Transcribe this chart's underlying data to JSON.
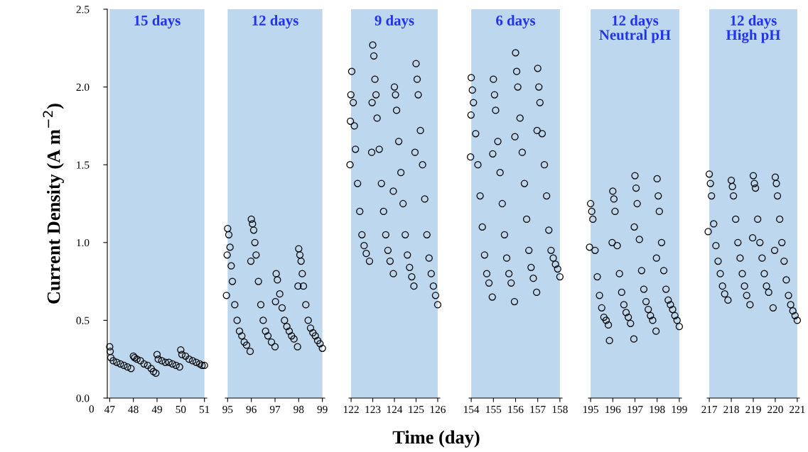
{
  "chart_data": [
    {
      "type": "scatter",
      "ylabel": "Current Density (A m$^{−2}$)",
      "annotations": [
        "0"
      ],
      "xlim": [
        46.9,
        51.1
      ],
      "xticks": [
        47,
        48,
        49,
        50,
        51
      ],
      "ylim": [
        0,
        2.5
      ],
      "yticks": [
        {
          "value": 0,
          "label": "0.0"
        },
        {
          "value": 0.5,
          "label": "0.5"
        },
        {
          "value": 1,
          "label": "1.0"
        },
        {
          "value": 1.5,
          "label": "1.5"
        },
        {
          "value": 2,
          "label": "2.0"
        },
        {
          "value": 2.5,
          "label": "2.5"
        }
      ],
      "marker": "circle",
      "bands": [
        {
          "axis": "x",
          "from": 47,
          "to": 51,
          "label": "15 days",
          "color": "#bdd7ee"
        }
      ],
      "series": [
        {
          "color": "#000000",
          "x": [
            47.0,
            47.02,
            47.05,
            47.15,
            47.3,
            47.45,
            47.6,
            47.75,
            47.9,
            48.0,
            48.05,
            48.15,
            48.3,
            48.45,
            48.6,
            48.75,
            48.85,
            48.95,
            49.0,
            49.05,
            49.2,
            49.35,
            49.5,
            49.65,
            49.8,
            49.95,
            50.0,
            50.05,
            50.2,
            50.35,
            50.5,
            50.65,
            50.8,
            50.9,
            51.0
          ],
          "values": [
            0.33,
            0.3,
            0.26,
            0.24,
            0.23,
            0.22,
            0.21,
            0.2,
            0.19,
            0.27,
            0.26,
            0.25,
            0.24,
            0.22,
            0.21,
            0.19,
            0.17,
            0.16,
            0.28,
            0.25,
            0.24,
            0.23,
            0.23,
            0.22,
            0.21,
            0.2,
            0.31,
            0.28,
            0.27,
            0.25,
            0.24,
            0.23,
            0.22,
            0.21,
            0.21
          ]
        }
      ]
    },
    {
      "type": "scatter",
      "xlim": [
        94.9,
        99.1
      ],
      "xticks": [
        95,
        96,
        97,
        98,
        99
      ],
      "ylim": [
        0,
        2.5
      ],
      "tick_labels": "x",
      "marker": "circle",
      "bands": [
        {
          "axis": "x",
          "from": 95,
          "to": 99,
          "label": "12 days",
          "color": "#bdd7ee"
        }
      ],
      "series": [
        {
          "color": "#000000",
          "x": [
            94.95,
            94.98,
            95.0,
            95.05,
            95.1,
            95.15,
            95.2,
            95.3,
            95.4,
            95.5,
            95.6,
            95.7,
            95.8,
            95.95,
            95.98,
            96.0,
            96.05,
            96.1,
            96.15,
            96.2,
            96.3,
            96.4,
            96.5,
            96.6,
            96.7,
            96.85,
            97.0,
            97.02,
            97.05,
            97.1,
            97.2,
            97.3,
            97.4,
            97.5,
            97.6,
            97.7,
            97.8,
            97.95,
            97.97,
            98.0,
            98.05,
            98.1,
            98.15,
            98.2,
            98.3,
            98.4,
            98.5,
            98.6,
            98.7,
            98.8,
            98.9,
            99.0
          ],
          "values": [
            0.66,
            0.92,
            1.09,
            1.05,
            0.97,
            0.85,
            0.75,
            0.6,
            0.5,
            0.43,
            0.4,
            0.36,
            0.34,
            0.3,
            0.88,
            1.15,
            1.12,
            1.08,
            1.0,
            0.92,
            0.75,
            0.6,
            0.5,
            0.43,
            0.4,
            0.36,
            0.33,
            0.62,
            0.8,
            0.76,
            0.67,
            0.58,
            0.5,
            0.46,
            0.43,
            0.4,
            0.38,
            0.33,
            0.72,
            0.96,
            0.92,
            0.88,
            0.8,
            0.72,
            0.6,
            0.5,
            0.45,
            0.42,
            0.4,
            0.37,
            0.35,
            0.32
          ]
        }
      ]
    },
    {
      "type": "scatter",
      "xlim": [
        121.9,
        126.1
      ],
      "xticks": [
        122,
        123,
        124,
        125,
        126
      ],
      "ylim": [
        0,
        2.5
      ],
      "tick_labels": "x",
      "marker": "circle",
      "xlabel": "Time (day)",
      "bands": [
        {
          "axis": "x",
          "from": 122,
          "to": 126,
          "label": "9 days",
          "color": "#bdd7ee"
        }
      ],
      "series": [
        {
          "color": "#000000",
          "x": [
            121.95,
            121.97,
            121.99,
            122.03,
            122.1,
            122.15,
            122.2,
            122.3,
            122.4,
            122.5,
            122.6,
            122.7,
            122.85,
            122.95,
            122.97,
            123.0,
            123.05,
            123.1,
            123.15,
            123.2,
            123.3,
            123.4,
            123.5,
            123.6,
            123.7,
            123.8,
            123.95,
            123.95,
            124.0,
            124.05,
            124.1,
            124.2,
            124.3,
            124.4,
            124.5,
            124.6,
            124.7,
            124.8,
            124.9,
            124.95,
            125.0,
            125.05,
            125.1,
            125.2,
            125.3,
            125.4,
            125.5,
            125.6,
            125.7,
            125.8,
            125.9,
            126.0
          ],
          "values": [
            1.5,
            1.78,
            1.95,
            2.1,
            1.9,
            1.75,
            1.6,
            1.38,
            1.2,
            1.05,
            0.98,
            0.93,
            0.88,
            1.58,
            1.9,
            2.27,
            2.2,
            2.05,
            1.95,
            1.8,
            1.6,
            1.38,
            1.2,
            1.05,
            0.95,
            0.88,
            0.8,
            1.33,
            2.0,
            1.95,
            1.85,
            1.65,
            1.45,
            1.25,
            1.05,
            0.92,
            0.84,
            0.78,
            0.72,
            1.58,
            2.15,
            2.05,
            1.95,
            1.72,
            1.5,
            1.28,
            1.05,
            0.9,
            0.8,
            0.72,
            0.66,
            0.6
          ]
        }
      ]
    },
    {
      "type": "scatter",
      "xlim": [
        153.9,
        158.1
      ],
      "xticks": [
        154,
        155,
        156,
        157,
        158
      ],
      "ylim": [
        0,
        2.5
      ],
      "tick_labels": "x",
      "marker": "circle",
      "bands": [
        {
          "axis": "x",
          "from": 154,
          "to": 158,
          "label": "6 days",
          "color": "#bdd7ee"
        }
      ],
      "series": [
        {
          "color": "#000000",
          "x": [
            153.97,
            153.99,
            154.0,
            154.05,
            154.1,
            154.2,
            154.3,
            154.4,
            154.5,
            154.6,
            154.7,
            154.8,
            154.95,
            154.97,
            155.0,
            155.05,
            155.1,
            155.2,
            155.3,
            155.4,
            155.5,
            155.6,
            155.7,
            155.8,
            155.95,
            155.97,
            156.0,
            156.05,
            156.1,
            156.2,
            156.3,
            156.4,
            156.5,
            156.6,
            156.7,
            156.8,
            156.95,
            156.97,
            157.0,
            157.05,
            157.1,
            157.2,
            157.3,
            157.4,
            157.5,
            157.6,
            157.7,
            157.8,
            157.9,
            158.0
          ],
          "values": [
            1.55,
            1.82,
            2.06,
            1.98,
            1.9,
            1.7,
            1.5,
            1.3,
            1.1,
            0.92,
            0.8,
            0.74,
            0.65,
            1.57,
            2.05,
            1.95,
            1.85,
            1.65,
            1.45,
            1.25,
            1.05,
            0.9,
            0.8,
            0.74,
            0.62,
            1.68,
            2.22,
            2.1,
            2.0,
            1.8,
            1.58,
            1.38,
            1.15,
            0.95,
            0.84,
            0.77,
            0.68,
            1.72,
            2.12,
            2.0,
            1.9,
            1.7,
            1.5,
            1.3,
            1.08,
            0.95,
            0.9,
            0.86,
            0.83,
            0.78
          ]
        }
      ]
    },
    {
      "type": "scatter",
      "xlim": [
        194.9,
        199.1
      ],
      "xticks": [
        195,
        196,
        197,
        198,
        199
      ],
      "ylim": [
        0,
        2.5
      ],
      "tick_labels": "x",
      "marker": "circle",
      "bands": [
        {
          "axis": "x",
          "from": 195,
          "to": 199,
          "label": "12 days\nNeutral pH",
          "color": "#bdd7ee"
        }
      ],
      "series": [
        {
          "color": "#000000",
          "x": [
            194.95,
            195.0,
            195.05,
            195.1,
            195.2,
            195.3,
            195.4,
            195.5,
            195.6,
            195.7,
            195.8,
            195.85,
            195.97,
            196.0,
            196.05,
            196.1,
            196.2,
            196.3,
            196.4,
            196.5,
            196.6,
            196.7,
            196.8,
            196.95,
            196.97,
            197.0,
            197.05,
            197.1,
            197.2,
            197.3,
            197.4,
            197.5,
            197.6,
            197.7,
            197.8,
            197.95,
            197.97,
            198.0,
            198.05,
            198.1,
            198.2,
            198.3,
            198.4,
            198.5,
            198.6,
            198.7,
            198.8,
            198.9,
            199.0
          ],
          "values": [
            0.97,
            1.25,
            1.2,
            1.15,
            0.95,
            0.78,
            0.66,
            0.58,
            0.52,
            0.5,
            0.47,
            0.37,
            1.0,
            1.33,
            1.28,
            1.2,
            0.98,
            0.8,
            0.68,
            0.6,
            0.55,
            0.52,
            0.48,
            0.38,
            1.1,
            1.43,
            1.35,
            1.25,
            1.02,
            0.82,
            0.7,
            0.62,
            0.57,
            0.53,
            0.5,
            0.43,
            0.9,
            1.41,
            1.3,
            1.2,
            1.0,
            0.82,
            0.7,
            0.63,
            0.6,
            0.57,
            0.53,
            0.5,
            0.46
          ]
        }
      ]
    },
    {
      "type": "scatter",
      "xlim": [
        216.9,
        221.1
      ],
      "xticks": [
        217,
        218,
        219,
        220,
        221
      ],
      "ylim": [
        0,
        2.5
      ],
      "tick_labels": "x",
      "marker": "circle",
      "bands": [
        {
          "axis": "x",
          "from": 217,
          "to": 221,
          "label": "12 days\nHigh pH",
          "color": "#bdd7ee"
        }
      ],
      "series": [
        {
          "color": "#000000",
          "x": [
            216.95,
            217.0,
            217.05,
            217.1,
            217.2,
            217.3,
            217.4,
            217.5,
            217.6,
            217.7,
            217.85,
            218.0,
            218.05,
            218.1,
            218.2,
            218.3,
            218.4,
            218.5,
            218.6,
            218.7,
            218.85,
            218.97,
            219.0,
            219.05,
            219.1,
            219.2,
            219.3,
            219.4,
            219.5,
            219.6,
            219.7,
            219.9,
            219.97,
            220.0,
            220.05,
            220.1,
            220.2,
            220.3,
            220.4,
            220.5,
            220.6,
            220.7,
            220.8,
            220.9,
            221.0
          ],
          "values": [
            1.07,
            1.44,
            1.38,
            1.3,
            1.12,
            0.98,
            0.88,
            0.8,
            0.72,
            0.67,
            0.63,
            1.4,
            1.36,
            1.3,
            1.15,
            1.0,
            0.9,
            0.8,
            0.72,
            0.66,
            0.6,
            1.03,
            1.43,
            1.38,
            1.35,
            1.15,
            1.0,
            0.9,
            0.8,
            0.72,
            0.68,
            0.58,
            0.95,
            1.42,
            1.38,
            1.3,
            1.15,
            1.0,
            0.88,
            0.76,
            0.66,
            0.6,
            0.56,
            0.53,
            0.5
          ]
        }
      ]
    }
  ]
}
